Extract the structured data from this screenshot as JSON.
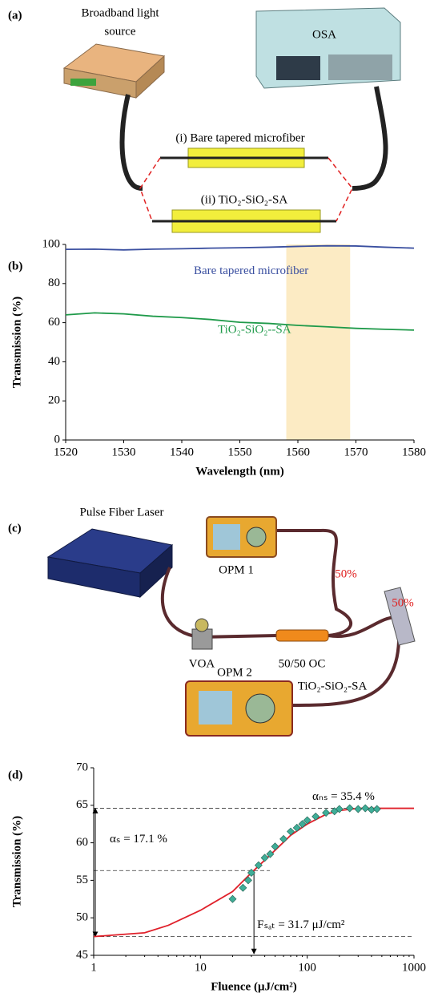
{
  "panel_a": {
    "label": "(a)",
    "source": [
      "Broadband light",
      "source"
    ],
    "analyzer": "OSA",
    "sample_i": "(i) Bare tapered microfiber",
    "sample_ii": "(ii) TiO₂-SiO₂-SA"
  },
  "panel_c": {
    "label": "(c)",
    "laser": "Pulse Fiber Laser",
    "meter_1": "OPM 1",
    "split_1": "50%",
    "split_2": "50%",
    "attenuator": "VOA",
    "coupler": "50/50 OC",
    "absorber": "TiO₂-SiO₂-SA",
    "meter_2": "OPM 2"
  },
  "chart_data": [
    {
      "type": "line",
      "panel_label": "(b)",
      "x_label": "Wavelength (nm)",
      "y_label": "Transmission (%)",
      "xlim": [
        1520,
        1580
      ],
      "xticks": [
        1520,
        1530,
        1540,
        1550,
        1560,
        1570,
        1580
      ],
      "ylim": [
        0,
        100
      ],
      "yticks": [
        0,
        20,
        40,
        60,
        80,
        100
      ],
      "highlight": [
        1558,
        1569
      ],
      "highlight_color": "#fcebc4",
      "series": [
        {
          "name": "Bare tapered microfiber",
          "color": "#3a4fa0",
          "x": [
            1520,
            1525,
            1530,
            1535,
            1540,
            1545,
            1550,
            1555,
            1560,
            1565,
            1570,
            1575,
            1580
          ],
          "values": [
            97.5,
            97.6,
            97.2,
            97.6,
            97.8,
            98.1,
            98.3,
            98.6,
            99,
            99.3,
            99.2,
            98.6,
            98.1
          ]
        },
        {
          "name": "TiO₂-SiO₂--SA",
          "color": "#1f9a4a",
          "x": [
            1520,
            1525,
            1530,
            1535,
            1540,
            1545,
            1550,
            1555,
            1560,
            1565,
            1570,
            1575,
            1580
          ],
          "values": [
            64,
            65,
            64.5,
            63.3,
            62.6,
            61.6,
            60.2,
            59.6,
            58.6,
            57.9,
            57.1,
            56.6,
            56.2
          ]
        }
      ]
    },
    {
      "type": "scatter",
      "panel_label": "(d)",
      "x_label": "Fluence (μJ/cm²)",
      "y_label": "Transmission (%)",
      "xscale": "log",
      "xlim": [
        1,
        1000
      ],
      "xticks": [
        1,
        10,
        100,
        1000
      ],
      "ylim": [
        45,
        70
      ],
      "yticks": [
        45,
        50,
        55,
        60,
        65,
        70
      ],
      "hlines": [
        64.6,
        56.3,
        47.5
      ],
      "sat_fluence": 31.7,
      "annotations": [
        "αₙₛ = 35.4 %",
        "αₛ = 17.1 %",
        "Fₛₐₜ = 31.7 μJ/cm²"
      ],
      "series": [
        {
          "type": "line",
          "color": "#e0202a",
          "x": [
            1,
            3,
            5,
            10,
            20,
            30,
            50,
            70,
            100,
            150,
            200,
            300,
            500,
            1000
          ],
          "values": [
            47.5,
            48,
            49,
            51,
            53.5,
            56,
            59,
            61,
            62.5,
            63.8,
            64.3,
            64.6,
            64.6,
            64.6
          ]
        },
        {
          "type": "scatter",
          "color": "#3fae98",
          "x": [
            20,
            25,
            28,
            30,
            35,
            40,
            45,
            50,
            60,
            70,
            80,
            90,
            100,
            120,
            150,
            180,
            200,
            250,
            300,
            350,
            400,
            450
          ],
          "values": [
            52.5,
            54,
            55,
            56,
            57,
            58,
            58.5,
            59.5,
            60.5,
            61.5,
            62,
            62.5,
            63,
            63.5,
            64,
            64.2,
            64.5,
            64.6,
            64.5,
            64.6,
            64.4,
            64.5
          ]
        }
      ]
    }
  ]
}
